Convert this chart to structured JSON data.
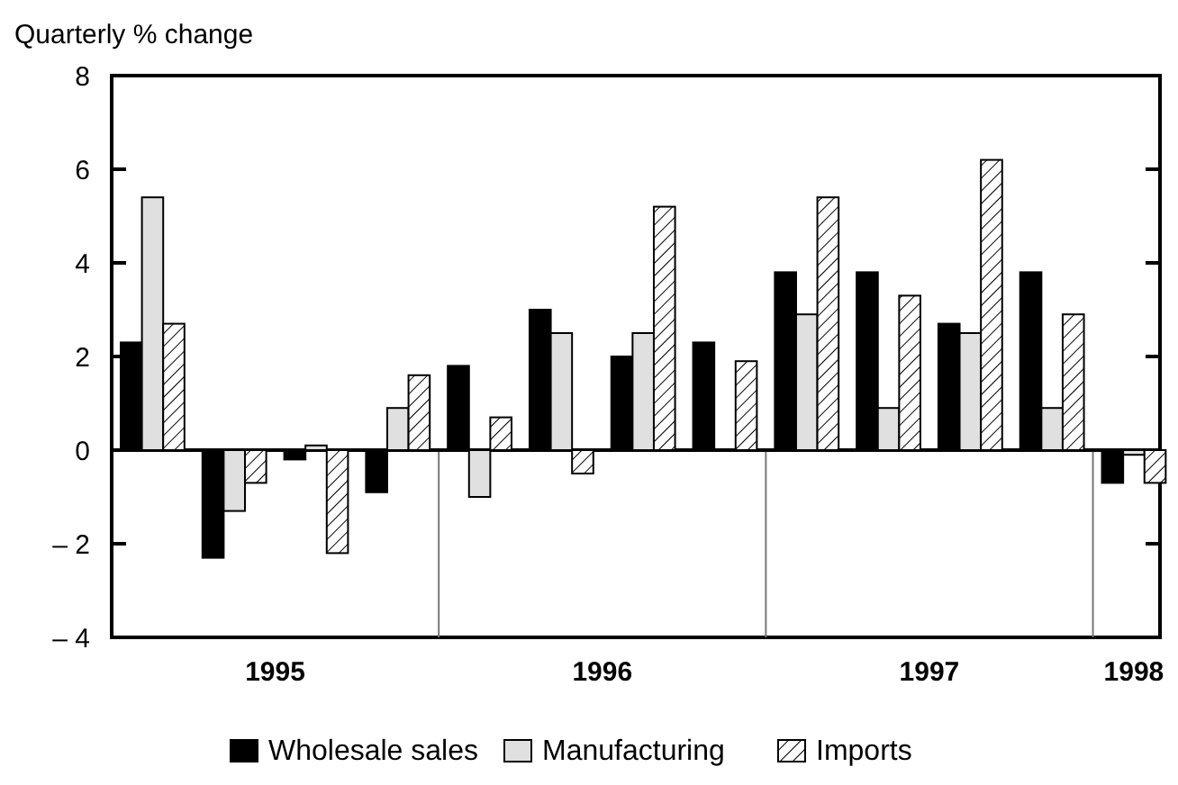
{
  "chart_data": {
    "type": "bar",
    "ylabel": "Quarterly % change",
    "x": [
      1995.125,
      1995.375,
      1995.625,
      1995.875,
      1996.125,
      1996.375,
      1996.625,
      1996.875,
      1997.125,
      1997.375,
      1997.625,
      1997.875,
      1998.125
    ],
    "xlim": [
      1995,
      1998.205
    ],
    "xticks": [
      {
        "value": 1995.5,
        "label": "1995"
      },
      {
        "value": 1996.5,
        "label": "1996"
      },
      {
        "value": 1997.5,
        "label": "1997"
      },
      {
        "value": 1998.125,
        "label": "1998"
      }
    ],
    "ref_lines": [
      {
        "axis": "x",
        "value": 1996,
        "color": "#777777"
      },
      {
        "axis": "x",
        "value": 1997,
        "color": "#777777"
      },
      {
        "axis": "x",
        "value": 1998,
        "color": "#777777"
      }
    ],
    "ylim": [
      -4,
      8
    ],
    "yticks": [
      {
        "value": -4,
        "label": "– 4"
      },
      {
        "value": -2,
        "label": "– 2"
      },
      0,
      2,
      4,
      6,
      8
    ],
    "tick_labels": "xy",
    "legend": "bottom",
    "series": [
      {
        "name": "Wholesale sales",
        "color": "#000000",
        "values": [
          2.3,
          -2.3,
          -0.2,
          -0.9,
          1.8,
          3.0,
          2.0,
          2.3,
          3.8,
          3.8,
          2.7,
          3.8,
          -0.7
        ]
      },
      {
        "name": "Manufacturing",
        "color": "#e0e0e0",
        "values": [
          5.4,
          -1.3,
          0.1,
          0.9,
          -1.0,
          2.5,
          2.5,
          0,
          2.9,
          0.9,
          2.5,
          0.9,
          -0.1
        ]
      },
      {
        "name": "Imports",
        "color": "#000000",
        "values": [
          2.7,
          -0.7,
          -2.2,
          1.6,
          0.7,
          -0.5,
          5.2,
          1.9,
          5.4,
          3.3,
          6.2,
          2.9,
          -0.7
        ]
      }
    ]
  }
}
